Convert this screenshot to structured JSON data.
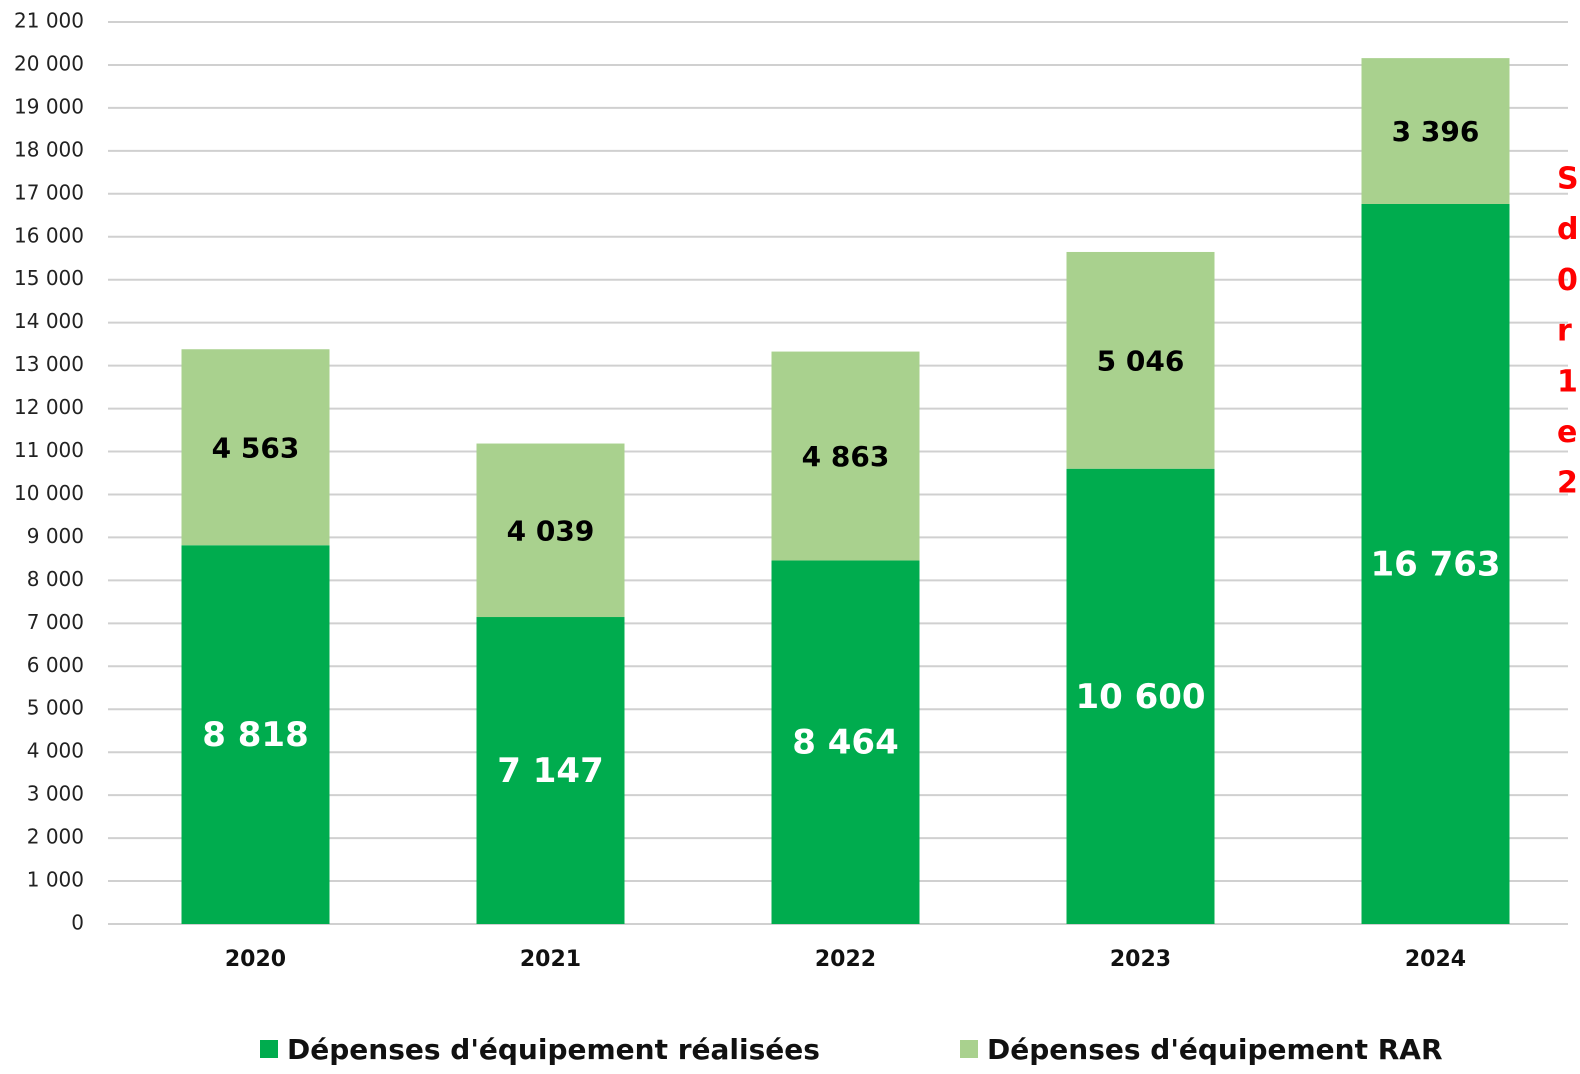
{
  "chart_data": {
    "type": "stacked_bar",
    "categories": [
      "2020",
      "2021",
      "2022",
      "2023",
      "2024"
    ],
    "series": [
      {
        "name": "Dépenses d'équipement réalisées",
        "color": "#00ac4e",
        "values": [
          8818,
          7147,
          8464,
          10600,
          16763
        ],
        "value_labels": [
          "8 818",
          "7 147",
          "8 464",
          "10 600",
          "16 763"
        ],
        "label_color": "#ffffff"
      },
      {
        "name": "Dépenses d'équipement RAR",
        "color": "#a9d18e",
        "values": [
          4563,
          4039,
          4863,
          5046,
          3396
        ],
        "value_labels": [
          "4 563",
          "4 039",
          "4 863",
          "5 046",
          "3 396"
        ],
        "label_color": "#000000"
      }
    ],
    "ylim": [
      0,
      21000
    ],
    "yticks": [
      0,
      {
        "value": 1000,
        "label": "1 000"
      },
      {
        "value": 2000,
        "label": "2 000"
      },
      {
        "value": 3000,
        "label": "3 000"
      },
      {
        "value": 4000,
        "label": "4 000"
      },
      {
        "value": 5000,
        "label": "5 000"
      },
      {
        "value": 6000,
        "label": "6 000"
      },
      {
        "value": 7000,
        "label": "7 000"
      },
      {
        "value": 8000,
        "label": "8 000"
      },
      {
        "value": 9000,
        "label": "9 000"
      },
      {
        "value": 10000,
        "label": "10 000"
      },
      {
        "value": 11000,
        "label": "11 000"
      },
      {
        "value": 12000,
        "label": "12 000"
      },
      {
        "value": 13000,
        "label": "13 000"
      },
      {
        "value": 14000,
        "label": "14 000"
      },
      {
        "value": 15000,
        "label": "15 000"
      },
      {
        "value": 16000,
        "label": "16 000"
      },
      {
        "value": 17000,
        "label": "17 000"
      },
      {
        "value": 18000,
        "label": "18 000"
      },
      {
        "value": 19000,
        "label": "19 000"
      },
      {
        "value": 20000,
        "label": "20 000"
      },
      {
        "value": 21000,
        "label": "21 000"
      }
    ],
    "grid": true,
    "legend": "bottom",
    "annotation_lines": [
      "S",
      "d",
      "0",
      "r",
      "1",
      "e",
      "2"
    ],
    "annotation_color": "#ff0000"
  }
}
